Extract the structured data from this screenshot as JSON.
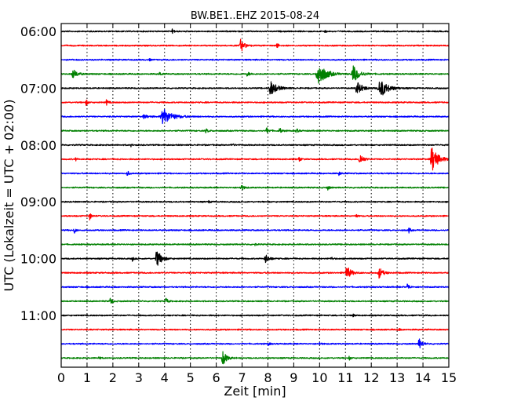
{
  "chart_data": {
    "type": "line",
    "title": "BW.BE1..EHZ 2015-08-24",
    "xlabel": "Zeit  [min]",
    "ylabel": "UTC (Lokalzeit = UTC + 02:00)",
    "xlim": [
      0,
      15
    ],
    "x_ticks": [
      "0",
      "1",
      "2",
      "3",
      "4",
      "5",
      "6",
      "7",
      "8",
      "9",
      "10",
      "11",
      "12",
      "13",
      "14",
      "15"
    ],
    "y_ticks": [
      "06:00",
      "07:00",
      "08:00",
      "09:00",
      "10:00",
      "11:00"
    ],
    "grid": "vertical dotted",
    "trace_minutes": 15,
    "start_utc": "06:00",
    "colors_cycle": [
      "#000000",
      "#ff0000",
      "#0000ff",
      "#008000"
    ],
    "series": [
      {
        "start": "06:00",
        "events": [
          {
            "t": 4.3,
            "a": 0.35,
            "d": 0.06
          },
          {
            "t": 10.2,
            "a": 0.2,
            "d": 0.05
          }
        ]
      },
      {
        "start": "06:15",
        "events": [
          {
            "t": 6.95,
            "a": 1.0,
            "d": 0.12
          },
          {
            "t": 8.35,
            "a": 0.4,
            "d": 0.06
          }
        ]
      },
      {
        "start": "06:30",
        "events": [
          {
            "t": 3.4,
            "a": 0.2,
            "d": 0.05
          }
        ]
      },
      {
        "start": "06:45",
        "events": [
          {
            "t": 0.45,
            "a": 0.7,
            "d": 0.15
          },
          {
            "t": 7.2,
            "a": 0.35,
            "d": 0.08
          },
          {
            "t": 9.95,
            "a": 1.9,
            "d": 0.25
          },
          {
            "t": 11.3,
            "a": 1.3,
            "d": 0.2
          },
          {
            "t": 3.8,
            "a": 0.25,
            "d": 0.06
          }
        ]
      },
      {
        "start": "07:00",
        "events": [
          {
            "t": 8.1,
            "a": 1.1,
            "d": 0.22
          },
          {
            "t": 11.45,
            "a": 0.9,
            "d": 0.2
          },
          {
            "t": 12.35,
            "a": 1.4,
            "d": 0.25
          }
        ]
      },
      {
        "start": "07:15",
        "events": [
          {
            "t": 0.95,
            "a": 0.5,
            "d": 0.06
          },
          {
            "t": 1.75,
            "a": 0.45,
            "d": 0.06
          }
        ]
      },
      {
        "start": "07:30",
        "events": [
          {
            "t": 3.95,
            "a": 1.2,
            "d": 0.3
          },
          {
            "t": 3.2,
            "a": 0.25,
            "d": 0.15
          }
        ]
      },
      {
        "start": "07:45",
        "events": [
          {
            "t": 7.95,
            "a": 0.5,
            "d": 0.07
          },
          {
            "t": 8.45,
            "a": 0.45,
            "d": 0.07
          },
          {
            "t": 9.1,
            "a": 0.4,
            "d": 0.06
          },
          {
            "t": 5.6,
            "a": 0.3,
            "d": 0.08
          }
        ]
      },
      {
        "start": "08:00",
        "events": [
          {
            "t": 6.6,
            "a": 0.35,
            "d": 0.05
          },
          {
            "t": 2.7,
            "a": 0.2,
            "d": 0.04
          }
        ]
      },
      {
        "start": "08:15",
        "events": [
          {
            "t": 11.55,
            "a": 0.9,
            "d": 0.12
          },
          {
            "t": 14.35,
            "a": 2.0,
            "d": 0.2
          },
          {
            "t": 9.2,
            "a": 0.45,
            "d": 0.05
          },
          {
            "t": 0.55,
            "a": 0.3,
            "d": 0.04
          }
        ]
      },
      {
        "start": "08:30",
        "events": [
          {
            "t": 2.55,
            "a": 0.55,
            "d": 0.05
          },
          {
            "t": 10.75,
            "a": 0.25,
            "d": 0.06
          }
        ]
      },
      {
        "start": "08:45",
        "events": [
          {
            "t": 6.95,
            "a": 0.6,
            "d": 0.08
          },
          {
            "t": 10.3,
            "a": 0.45,
            "d": 0.06
          }
        ]
      },
      {
        "start": "09:00",
        "events": [
          {
            "t": 5.7,
            "a": 0.2,
            "d": 0.05
          }
        ]
      },
      {
        "start": "09:15",
        "events": [
          {
            "t": 1.1,
            "a": 0.55,
            "d": 0.06
          },
          {
            "t": 11.4,
            "a": 0.3,
            "d": 0.05
          }
        ]
      },
      {
        "start": "09:30",
        "events": [
          {
            "t": 0.5,
            "a": 0.55,
            "d": 0.05
          },
          {
            "t": 13.45,
            "a": 0.45,
            "d": 0.05
          }
        ]
      },
      {
        "start": "09:45",
        "events": [
          {
            "t": 7.5,
            "a": 0.15,
            "d": 0.05
          }
        ]
      },
      {
        "start": "10:00",
        "events": [
          {
            "t": 3.7,
            "a": 1.4,
            "d": 0.15
          },
          {
            "t": 7.9,
            "a": 0.7,
            "d": 0.12
          },
          {
            "t": 2.75,
            "a": 0.35,
            "d": 0.05
          },
          {
            "t": 10.45,
            "a": 0.3,
            "d": 0.05
          }
        ]
      },
      {
        "start": "10:15",
        "events": [
          {
            "t": 11.05,
            "a": 1.0,
            "d": 0.15
          },
          {
            "t": 12.3,
            "a": 0.85,
            "d": 0.13
          }
        ]
      },
      {
        "start": "10:30",
        "events": [
          {
            "t": 13.4,
            "a": 0.65,
            "d": 0.06
          }
        ]
      },
      {
        "start": "10:45",
        "events": [
          {
            "t": 1.9,
            "a": 0.6,
            "d": 0.06
          },
          {
            "t": 4.05,
            "a": 0.55,
            "d": 0.06
          }
        ]
      },
      {
        "start": "11:00",
        "events": [
          {
            "t": 11.3,
            "a": 0.2,
            "d": 0.05
          }
        ]
      },
      {
        "start": "11:15",
        "events": [
          {
            "t": 13.05,
            "a": 0.2,
            "d": 0.05
          }
        ]
      },
      {
        "start": "11:30",
        "events": [
          {
            "t": 13.85,
            "a": 0.85,
            "d": 0.1
          },
          {
            "t": 8.0,
            "a": 0.25,
            "d": 0.06
          },
          {
            "t": 10.0,
            "a": 0.25,
            "d": 0.06
          }
        ]
      },
      {
        "start": "11:45",
        "events": [
          {
            "t": 6.25,
            "a": 1.2,
            "d": 0.12
          },
          {
            "t": 1.45,
            "a": 0.4,
            "d": 0.04
          },
          {
            "t": 11.15,
            "a": 0.3,
            "d": 0.05
          }
        ]
      }
    ]
  }
}
